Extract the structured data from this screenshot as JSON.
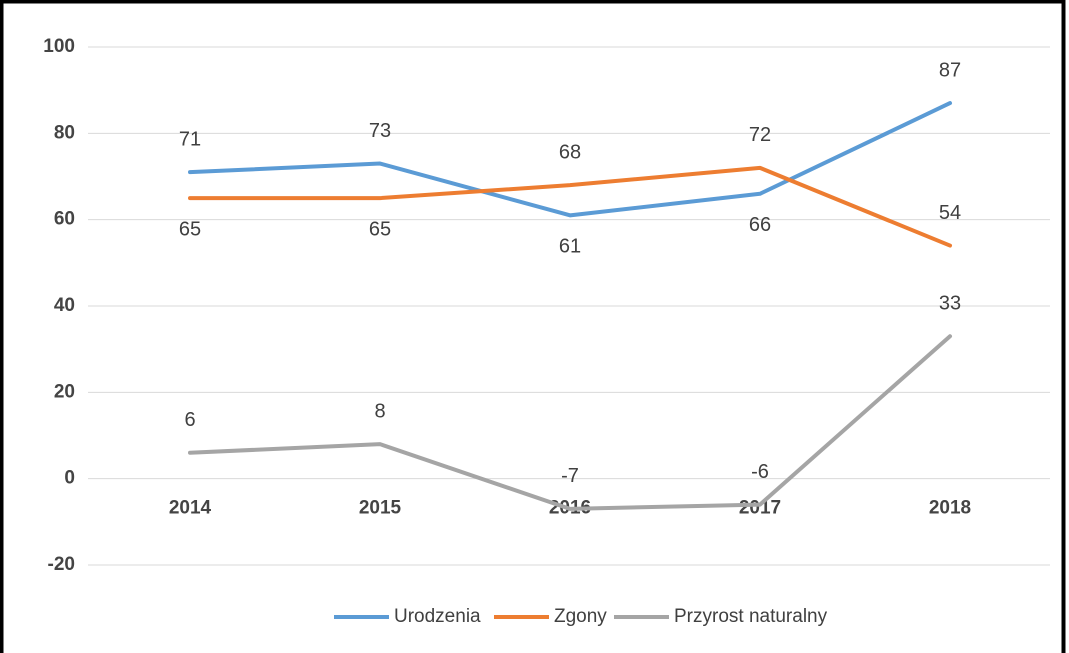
{
  "chart_data": {
    "type": "line",
    "categories": [
      "2014",
      "2015",
      "2016",
      "2017",
      "2018"
    ],
    "series": [
      {
        "name": "Urodzenia",
        "color": "#5b9bd5",
        "values": [
          71,
          73,
          61,
          66,
          87
        ]
      },
      {
        "name": "Zgony",
        "color": "#ed7d31",
        "values": [
          65,
          65,
          68,
          72,
          54
        ]
      },
      {
        "name": "Przyrost naturalny",
        "color": "#a5a5a5",
        "values": [
          6,
          8,
          -7,
          -6,
          33
        ]
      }
    ],
    "ylim": [
      -20,
      100
    ],
    "yticks": [
      -20,
      0,
      20,
      40,
      60,
      80,
      100
    ],
    "grid": true,
    "legend": "bottom"
  }
}
